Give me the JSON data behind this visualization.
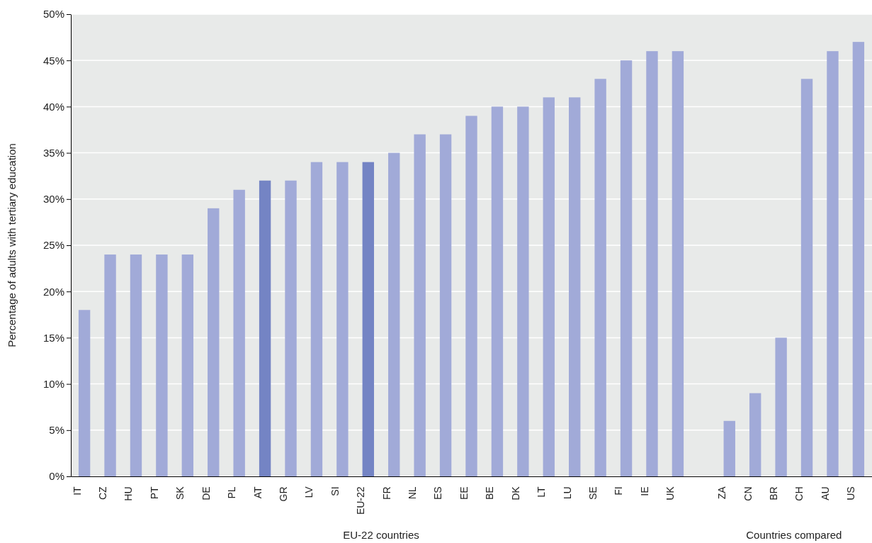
{
  "chart_data": {
    "type": "bar",
    "ylabel": "Percentage of adults with tertiary education",
    "categories": [
      "IT",
      "CZ",
      "HU",
      "PT",
      "SK",
      "DE",
      "PL",
      "AT",
      "GR",
      "LV",
      "SI",
      "EU-22",
      "FR",
      "NL",
      "ES",
      "EE",
      "BE",
      "DK",
      "LT",
      "LU",
      "SE",
      "FI",
      "IE",
      "UK",
      null,
      "ZA",
      "CN",
      "BR",
      "CH",
      "AU",
      "US"
    ],
    "values": [
      18,
      24,
      24,
      24,
      24,
      29,
      31,
      32,
      32,
      34,
      34,
      34,
      35,
      37,
      37,
      39,
      40,
      40,
      41,
      41,
      43,
      45,
      46,
      46,
      null,
      6,
      9,
      15,
      43,
      46,
      47
    ],
    "colors": [
      "#a1aad8",
      "#a1aad8",
      "#a1aad8",
      "#a1aad8",
      "#a1aad8",
      "#a1aad8",
      "#a1aad8",
      "#7484c4",
      "#a1aad8",
      "#a1aad8",
      "#a1aad8",
      "#7484c4",
      "#a1aad8",
      "#a1aad8",
      "#a1aad8",
      "#a1aad8",
      "#a1aad8",
      "#a1aad8",
      "#a1aad8",
      "#a1aad8",
      "#a1aad8",
      "#a1aad8",
      "#a1aad8",
      "#a1aad8",
      null,
      "#a1aad8",
      "#a1aad8",
      "#a1aad8",
      "#a1aad8",
      "#a1aad8",
      "#a1aad8"
    ],
    "ylim": [
      0,
      50
    ],
    "yticks": [
      {
        "value": 0,
        "label": "0%"
      },
      {
        "value": 5,
        "label": "5%"
      },
      {
        "value": 10,
        "label": "10%"
      },
      {
        "value": 15,
        "label": "15%"
      },
      {
        "value": 20,
        "label": "20%"
      },
      {
        "value": 25,
        "label": "25%"
      },
      {
        "value": 30,
        "label": "30%"
      },
      {
        "value": 35,
        "label": "35%"
      },
      {
        "value": 40,
        "label": "40%"
      },
      {
        "value": 45,
        "label": "45%"
      },
      {
        "value": 50,
        "label": "50%"
      }
    ],
    "grid": "y",
    "annotations": [
      "EU-22 countries",
      "Countries compared"
    ]
  }
}
